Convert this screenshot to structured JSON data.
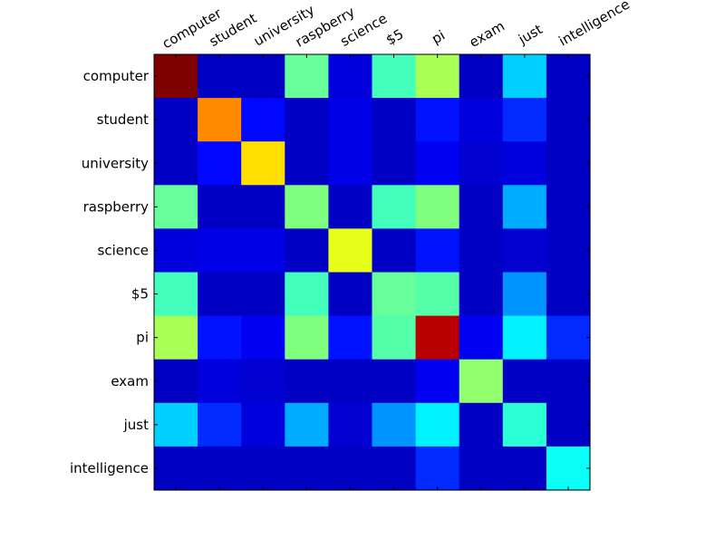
{
  "chart_data": {
    "type": "heatmap",
    "title": "",
    "xlabel": "",
    "ylabel": "",
    "colormap": "jet",
    "value_range": [
      0,
      1
    ],
    "x_tick_position": "top",
    "x_labels": [
      "computer",
      "student",
      "university",
      "raspberry",
      "science",
      "$5",
      "pi",
      "exam",
      "just",
      "intelligence"
    ],
    "y_labels": [
      "computer",
      "student",
      "university",
      "raspberry",
      "science",
      "$5",
      "pi",
      "exam",
      "just",
      "intelligence"
    ],
    "values": [
      [
        1.0,
        0.06,
        0.06,
        0.47,
        0.08,
        0.43,
        0.55,
        0.06,
        0.3,
        0.06
      ],
      [
        0.06,
        0.76,
        0.13,
        0.06,
        0.09,
        0.06,
        0.14,
        0.08,
        0.16,
        0.06
      ],
      [
        0.06,
        0.13,
        0.68,
        0.06,
        0.09,
        0.06,
        0.1,
        0.07,
        0.08,
        0.06
      ],
      [
        0.47,
        0.06,
        0.06,
        0.5,
        0.06,
        0.43,
        0.5,
        0.06,
        0.27,
        0.06
      ],
      [
        0.08,
        0.09,
        0.09,
        0.06,
        0.62,
        0.06,
        0.14,
        0.06,
        0.07,
        0.06
      ],
      [
        0.43,
        0.06,
        0.06,
        0.43,
        0.06,
        0.47,
        0.45,
        0.06,
        0.25,
        0.06
      ],
      [
        0.55,
        0.14,
        0.1,
        0.5,
        0.14,
        0.45,
        0.95,
        0.1,
        0.33,
        0.16
      ],
      [
        0.06,
        0.08,
        0.07,
        0.06,
        0.06,
        0.06,
        0.1,
        0.52,
        0.06,
        0.06
      ],
      [
        0.3,
        0.16,
        0.08,
        0.27,
        0.07,
        0.25,
        0.33,
        0.06,
        0.4,
        0.06
      ],
      [
        0.06,
        0.06,
        0.06,
        0.06,
        0.06,
        0.06,
        0.16,
        0.06,
        0.06,
        0.36
      ]
    ]
  }
}
